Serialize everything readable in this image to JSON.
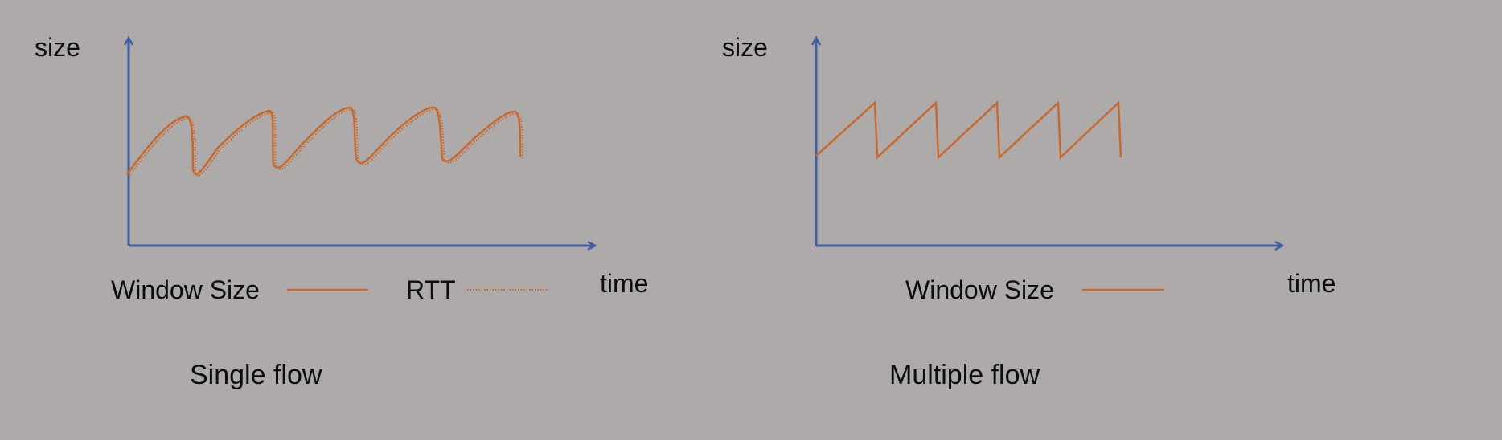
{
  "colors": {
    "background": "#aeaaa9",
    "axis": "#3f5f9e",
    "series": "#c8682c",
    "text": "#0d0d0d"
  },
  "left_panel": {
    "y_label": "size",
    "x_label": "time",
    "legend_window": "Window Size",
    "legend_rtt": "RTT",
    "caption": "Single flow"
  },
  "right_panel": {
    "y_label": "size",
    "x_label": "time",
    "legend_window": "Window Size",
    "caption": "Multiple flow"
  }
}
